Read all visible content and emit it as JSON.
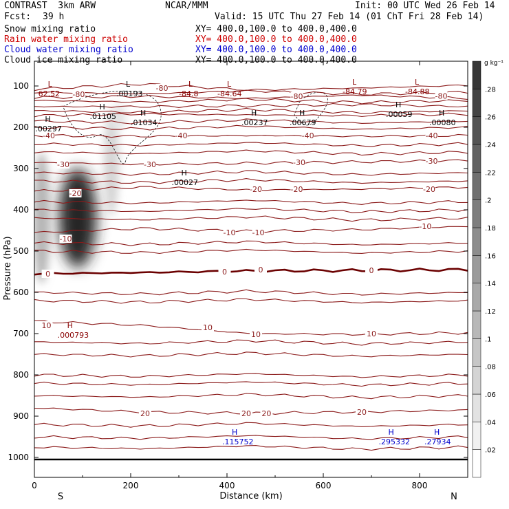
{
  "header": {
    "title_left": "CONTRAST  3km ARW",
    "title_center": "NCAR/MMM",
    "init": "Init: 00 UTC Wed 26 Feb 14",
    "fcst_label": "Fcst:",
    "fcst_value": "39 h",
    "valid": "Valid: 15 UTC Thu 27 Feb 14 (01 ChT Fri 28 Feb 14)",
    "fields": [
      {
        "name": "Snow mixing ratio",
        "xy": "XY= 400.0,100.0 to 400.0,400.0",
        "color": "#000000"
      },
      {
        "name": "Rain water mixing ratio",
        "xy": "XY= 400.0,100.0 to 400.0,400.0",
        "color": "#cc0000"
      },
      {
        "name": "Cloud water mixing ratio",
        "xy": "XY= 400.0,100.0 to 400.0,400.0",
        "color": "#0000cc"
      },
      {
        "name": "Cloud ice mixing ratio",
        "xy": "XY= 400.0,100.0 to 400.0,400.0",
        "color": "#000000"
      }
    ]
  },
  "chart_data": {
    "type": "heatmap",
    "xlabel": "Distance (km)",
    "ylabel": "Pressure (hPa)",
    "xlim": [
      0,
      900
    ],
    "ylim": [
      1050,
      70
    ],
    "xticks": [
      0,
      200,
      400,
      600,
      800
    ],
    "yticks": [
      100,
      200,
      300,
      400,
      500,
      600,
      700,
      800,
      900,
      1000
    ],
    "end_labels": {
      "left": "S",
      "right": "N"
    },
    "colorbar": {
      "unit": "g kg⁻¹",
      "ticks": [
        ".02",
        ".04",
        ".06",
        ".08",
        ".1",
        ".12",
        ".14",
        ".16",
        ".18",
        ".2",
        ".22",
        ".24",
        ".26",
        ".28"
      ],
      "values": [
        0.02,
        0.04,
        0.06,
        0.08,
        0.1,
        0.12,
        0.14,
        0.16,
        0.18,
        0.2,
        0.22,
        0.24,
        0.26,
        0.28
      ],
      "range": [
        0,
        0.3
      ]
    },
    "shaded_field": [
      {
        "x": 90,
        "p": 420,
        "value": 0.3
      },
      {
        "x": 15,
        "p": 420,
        "value": 0.1
      },
      {
        "x": 160,
        "p": 290,
        "value": 0.06
      },
      {
        "x": 175,
        "p": 175,
        "value": 0.04
      }
    ],
    "temperature_contours": [
      -80,
      -70,
      -60,
      -50,
      -40,
      -30,
      -20,
      -10,
      0,
      10,
      20
    ],
    "contour_labels": [
      {
        "text": "-80",
        "x": 265,
        "p": 105
      },
      {
        "text": "-80",
        "x": 92,
        "p": 120
      },
      {
        "text": "-80",
        "x": 545,
        "p": 125
      },
      {
        "text": "-80",
        "x": 845,
        "p": 124
      },
      {
        "text": "-40",
        "x": 30,
        "p": 220
      },
      {
        "text": "-40",
        "x": 305,
        "p": 220
      },
      {
        "text": "-40",
        "x": 568,
        "p": 220
      },
      {
        "text": "-40",
        "x": 825,
        "p": 220
      },
      {
        "text": "-30",
        "x": 60,
        "p": 290
      },
      {
        "text": "-30",
        "x": 240,
        "p": 290
      },
      {
        "text": "-30",
        "x": 550,
        "p": 285
      },
      {
        "text": "-30",
        "x": 825,
        "p": 282
      },
      {
        "text": "-20",
        "x": 85,
        "p": 360
      },
      {
        "text": "-20",
        "x": 460,
        "p": 350
      },
      {
        "text": "-20",
        "x": 545,
        "p": 350
      },
      {
        "text": "-20",
        "x": 820,
        "p": 350
      },
      {
        "text": "-10",
        "x": 65,
        "p": 470
      },
      {
        "text": "-10",
        "x": 405,
        "p": 455
      },
      {
        "text": "-10",
        "x": 465,
        "p": 455
      },
      {
        "text": "-10",
        "x": 812,
        "p": 440
      },
      {
        "text": "0",
        "x": 28,
        "p": 555
      },
      {
        "text": "0",
        "x": 395,
        "p": 550
      },
      {
        "text": "0",
        "x": 470,
        "p": 545
      },
      {
        "text": "0",
        "x": 700,
        "p": 547
      },
      {
        "text": "10",
        "x": 25,
        "p": 680
      },
      {
        "text": "10",
        "x": 360,
        "p": 685
      },
      {
        "text": "10",
        "x": 460,
        "p": 702
      },
      {
        "text": "10",
        "x": 700,
        "p": 700
      },
      {
        "text": "20",
        "x": 230,
        "p": 893
      },
      {
        "text": "20",
        "x": 440,
        "p": 893
      },
      {
        "text": "20",
        "x": 482,
        "p": 893
      },
      {
        "text": "20",
        "x": 680,
        "p": 890
      }
    ],
    "extrema": [
      {
        "kind": "L",
        "value": "62.52",
        "x": 8,
        "p": 115,
        "color": "#880000"
      },
      {
        "kind": "L",
        "value": ".00193",
        "x": 170,
        "p": 115,
        "color": "#000000"
      },
      {
        "kind": "L",
        "value": "-84.8",
        "x": 300,
        "p": 115,
        "color": "#880000"
      },
      {
        "kind": "L",
        "value": "-84.64",
        "x": 380,
        "p": 115,
        "color": "#880000"
      },
      {
        "kind": "L",
        "value": "-84.79",
        "x": 640,
        "p": 110,
        "color": "#880000"
      },
      {
        "kind": "L",
        "value": "-84.88",
        "x": 770,
        "p": 110,
        "color": "#880000"
      },
      {
        "kind": "H",
        "value": ".01105",
        "x": 115,
        "p": 170,
        "color": "#000000"
      },
      {
        "kind": "H",
        "value": ".01034",
        "x": 200,
        "p": 185,
        "color": "#000000"
      },
      {
        "kind": "H",
        "value": ".00237",
        "x": 430,
        "p": 185,
        "color": "#000000"
      },
      {
        "kind": "H",
        "value": ".00679",
        "x": 530,
        "p": 185,
        "color": "#000000"
      },
      {
        "kind": "H",
        "value": ".00059",
        "x": 730,
        "p": 165,
        "color": "#000000"
      },
      {
        "kind": "H",
        "value": ".00080",
        "x": 820,
        "p": 185,
        "color": "#000000"
      },
      {
        "kind": "H",
        "value": ".00027",
        "x": 285,
        "p": 330,
        "color": "#000000"
      },
      {
        "kind": "H",
        "value": ".00297",
        "x": 2,
        "p": 200,
        "color": "#000000"
      },
      {
        "kind": "H",
        "value": ".000793",
        "x": 48,
        "p": 700,
        "color": "#880000"
      },
      {
        "kind": "H",
        "value": ".115752",
        "x": 390,
        "p": 958,
        "color": "#0000cc"
      },
      {
        "kind": "H",
        "value": ".295332",
        "x": 715,
        "p": 958,
        "color": "#0000cc"
      },
      {
        "kind": "H",
        "value": ".27934",
        "x": 810,
        "p": 958,
        "color": "#0000cc"
      }
    ],
    "ground_pressure": 1005
  }
}
